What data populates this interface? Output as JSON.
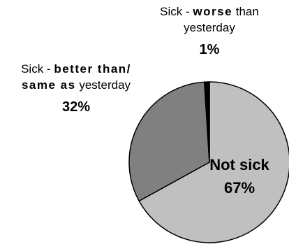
{
  "chart_data": {
    "type": "pie",
    "title": "",
    "slices": [
      {
        "label_pre": "",
        "label_bold": "Not sick",
        "label_post": "",
        "value": 67,
        "value_label": "67%",
        "color": "#c0c0c0"
      },
      {
        "label_pre": "Sick - ",
        "label_bold": "better than/ same as",
        "label_post": " yesterday",
        "value": 32,
        "value_label": "32%",
        "color": "#808080"
      },
      {
        "label_pre": "Sick - ",
        "label_bold": "worse",
        "label_post": " than yesterday",
        "value": 1,
        "value_label": "1%",
        "color": "#000000"
      }
    ],
    "start_angle_deg": 90,
    "direction": "clockwise",
    "edge_color": "#000000"
  }
}
